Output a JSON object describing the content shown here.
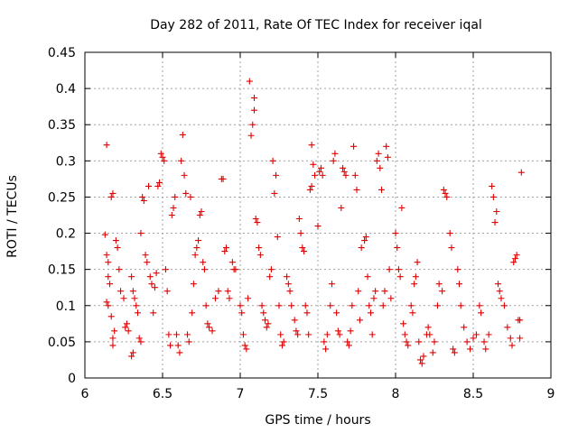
{
  "chart_data": {
    "type": "scatter",
    "title": "Day 282 of 2011, Rate Of TEC Index for receiver iqal",
    "xlabel": "GPS time / hours",
    "ylabel": "ROTI / TECUs",
    "xlim": [
      6,
      9
    ],
    "ylim": [
      0,
      0.45
    ],
    "xticks": [
      "6",
      "6.5",
      "7",
      "7.5",
      "8",
      "8.5",
      "9"
    ],
    "yticks": [
      "0",
      "0.05",
      "0.1",
      "0.15",
      "0.2",
      "0.25",
      "0.3",
      "0.35",
      "0.4",
      "0.45"
    ],
    "grid": true,
    "marker": "+",
    "color": "#e00000",
    "series": [
      {
        "name": "ROTI",
        "points": [
          [
            6.14,
            0.322
          ],
          [
            6.13,
            0.198
          ],
          [
            6.14,
            0.17
          ],
          [
            6.15,
            0.16
          ],
          [
            6.15,
            0.14
          ],
          [
            6.16,
            0.13
          ],
          [
            6.14,
            0.105
          ],
          [
            6.15,
            0.1
          ],
          [
            6.17,
            0.085
          ],
          [
            6.18,
            0.055
          ],
          [
            6.18,
            0.045
          ],
          [
            6.19,
            0.065
          ],
          [
            6.17,
            0.25
          ],
          [
            6.18,
            0.255
          ],
          [
            6.2,
            0.19
          ],
          [
            6.21,
            0.18
          ],
          [
            6.22,
            0.15
          ],
          [
            6.23,
            0.12
          ],
          [
            6.25,
            0.11
          ],
          [
            6.26,
            0.07
          ],
          [
            6.27,
            0.075
          ],
          [
            6.28,
            0.065
          ],
          [
            6.3,
            0.14
          ],
          [
            6.31,
            0.12
          ],
          [
            6.32,
            0.11
          ],
          [
            6.33,
            0.1
          ],
          [
            6.34,
            0.09
          ],
          [
            6.3,
            0.03
          ],
          [
            6.31,
            0.035
          ],
          [
            6.35,
            0.055
          ],
          [
            6.36,
            0.05
          ],
          [
            6.36,
            0.2
          ],
          [
            6.37,
            0.25
          ],
          [
            6.38,
            0.245
          ],
          [
            6.39,
            0.17
          ],
          [
            6.4,
            0.16
          ],
          [
            6.41,
            0.265
          ],
          [
            6.42,
            0.14
          ],
          [
            6.43,
            0.13
          ],
          [
            6.44,
            0.09
          ],
          [
            6.45,
            0.125
          ],
          [
            6.46,
            0.145
          ],
          [
            6.47,
            0.265
          ],
          [
            6.48,
            0.27
          ],
          [
            6.49,
            0.31
          ],
          [
            6.5,
            0.305
          ],
          [
            6.51,
            0.3
          ],
          [
            6.52,
            0.15
          ],
          [
            6.53,
            0.12
          ],
          [
            6.54,
            0.06
          ],
          [
            6.55,
            0.045
          ],
          [
            6.56,
            0.225
          ],
          [
            6.57,
            0.235
          ],
          [
            6.58,
            0.25
          ],
          [
            6.59,
            0.06
          ],
          [
            6.6,
            0.045
          ],
          [
            6.61,
            0.035
          ],
          [
            6.62,
            0.3
          ],
          [
            6.63,
            0.336
          ],
          [
            6.64,
            0.28
          ],
          [
            6.65,
            0.255
          ],
          [
            6.66,
            0.06
          ],
          [
            6.67,
            0.05
          ],
          [
            6.68,
            0.25
          ],
          [
            6.69,
            0.09
          ],
          [
            6.7,
            0.13
          ],
          [
            6.71,
            0.17
          ],
          [
            6.72,
            0.18
          ],
          [
            6.73,
            0.19
          ],
          [
            6.74,
            0.225
          ],
          [
            6.75,
            0.23
          ],
          [
            6.76,
            0.16
          ],
          [
            6.77,
            0.15
          ],
          [
            6.78,
            0.1
          ],
          [
            6.79,
            0.075
          ],
          [
            6.8,
            0.07
          ],
          [
            6.82,
            0.065
          ],
          [
            6.84,
            0.11
          ],
          [
            6.86,
            0.12
          ],
          [
            6.88,
            0.275
          ],
          [
            6.89,
            0.275
          ],
          [
            6.9,
            0.175
          ],
          [
            6.91,
            0.18
          ],
          [
            6.92,
            0.12
          ],
          [
            6.93,
            0.11
          ],
          [
            6.95,
            0.16
          ],
          [
            6.96,
            0.15
          ],
          [
            6.97,
            0.15
          ],
          [
            7.0,
            0.1
          ],
          [
            7.01,
            0.09
          ],
          [
            7.02,
            0.06
          ],
          [
            7.03,
            0.045
          ],
          [
            7.04,
            0.04
          ],
          [
            7.05,
            0.11
          ],
          [
            7.06,
            0.41
          ],
          [
            7.07,
            0.335
          ],
          [
            7.08,
            0.35
          ],
          [
            7.09,
            0.37
          ],
          [
            7.09,
            0.387
          ],
          [
            7.1,
            0.22
          ],
          [
            7.11,
            0.215
          ],
          [
            7.12,
            0.18
          ],
          [
            7.13,
            0.17
          ],
          [
            7.14,
            0.1
          ],
          [
            7.15,
            0.09
          ],
          [
            7.16,
            0.08
          ],
          [
            7.17,
            0.07
          ],
          [
            7.18,
            0.075
          ],
          [
            7.19,
            0.14
          ],
          [
            7.2,
            0.15
          ],
          [
            7.21,
            0.3
          ],
          [
            7.22,
            0.255
          ],
          [
            7.23,
            0.28
          ],
          [
            7.24,
            0.195
          ],
          [
            7.25,
            0.1
          ],
          [
            7.26,
            0.06
          ],
          [
            7.27,
            0.045
          ],
          [
            7.28,
            0.05
          ],
          [
            7.3,
            0.14
          ],
          [
            7.31,
            0.13
          ],
          [
            7.32,
            0.12
          ],
          [
            7.33,
            0.1
          ],
          [
            7.35,
            0.08
          ],
          [
            7.36,
            0.065
          ],
          [
            7.37,
            0.06
          ],
          [
            7.38,
            0.22
          ],
          [
            7.39,
            0.2
          ],
          [
            7.4,
            0.18
          ],
          [
            7.41,
            0.175
          ],
          [
            7.42,
            0.1
          ],
          [
            7.43,
            0.09
          ],
          [
            7.44,
            0.06
          ],
          [
            7.45,
            0.26
          ],
          [
            7.46,
            0.265
          ],
          [
            7.46,
            0.322
          ],
          [
            7.47,
            0.295
          ],
          [
            7.48,
            0.28
          ],
          [
            7.5,
            0.21
          ],
          [
            7.51,
            0.285
          ],
          [
            7.52,
            0.29
          ],
          [
            7.53,
            0.28
          ],
          [
            7.54,
            0.05
          ],
          [
            7.55,
            0.04
          ],
          [
            7.56,
            0.06
          ],
          [
            7.58,
            0.1
          ],
          [
            7.59,
            0.13
          ],
          [
            7.6,
            0.3
          ],
          [
            7.61,
            0.31
          ],
          [
            7.62,
            0.09
          ],
          [
            7.63,
            0.065
          ],
          [
            7.64,
            0.06
          ],
          [
            7.65,
            0.235
          ],
          [
            7.66,
            0.29
          ],
          [
            7.67,
            0.285
          ],
          [
            7.68,
            0.28
          ],
          [
            7.69,
            0.05
          ],
          [
            7.7,
            0.045
          ],
          [
            7.71,
            0.065
          ],
          [
            7.72,
            0.1
          ],
          [
            7.73,
            0.32
          ],
          [
            7.74,
            0.28
          ],
          [
            7.75,
            0.26
          ],
          [
            7.76,
            0.12
          ],
          [
            7.77,
            0.08
          ],
          [
            7.78,
            0.18
          ],
          [
            7.8,
            0.19
          ],
          [
            7.81,
            0.195
          ],
          [
            7.82,
            0.14
          ],
          [
            7.83,
            0.1
          ],
          [
            7.84,
            0.09
          ],
          [
            7.85,
            0.06
          ],
          [
            7.86,
            0.11
          ],
          [
            7.87,
            0.12
          ],
          [
            7.88,
            0.3
          ],
          [
            7.89,
            0.31
          ],
          [
            7.9,
            0.29
          ],
          [
            7.91,
            0.26
          ],
          [
            7.92,
            0.1
          ],
          [
            7.93,
            0.12
          ],
          [
            7.94,
            0.32
          ],
          [
            7.95,
            0.305
          ],
          [
            7.96,
            0.15
          ],
          [
            7.97,
            0.11
          ],
          [
            8.0,
            0.2
          ],
          [
            8.01,
            0.18
          ],
          [
            8.02,
            0.15
          ],
          [
            8.03,
            0.14
          ],
          [
            8.04,
            0.235
          ],
          [
            8.05,
            0.075
          ],
          [
            8.06,
            0.06
          ],
          [
            8.07,
            0.05
          ],
          [
            8.08,
            0.045
          ],
          [
            8.1,
            0.1
          ],
          [
            8.11,
            0.09
          ],
          [
            8.12,
            0.13
          ],
          [
            8.13,
            0.14
          ],
          [
            8.14,
            0.16
          ],
          [
            8.15,
            0.05
          ],
          [
            8.16,
            0.025
          ],
          [
            8.17,
            0.02
          ],
          [
            8.18,
            0.03
          ],
          [
            8.2,
            0.06
          ],
          [
            8.21,
            0.07
          ],
          [
            8.22,
            0.06
          ],
          [
            8.24,
            0.035
          ],
          [
            8.25,
            0.05
          ],
          [
            8.27,
            0.1
          ],
          [
            8.28,
            0.13
          ],
          [
            8.3,
            0.12
          ],
          [
            8.31,
            0.26
          ],
          [
            8.32,
            0.255
          ],
          [
            8.33,
            0.25
          ],
          [
            8.35,
            0.2
          ],
          [
            8.36,
            0.18
          ],
          [
            8.37,
            0.04
          ],
          [
            8.38,
            0.035
          ],
          [
            8.4,
            0.15
          ],
          [
            8.41,
            0.13
          ],
          [
            8.42,
            0.1
          ],
          [
            8.44,
            0.07
          ],
          [
            8.46,
            0.05
          ],
          [
            8.48,
            0.04
          ],
          [
            8.5,
            0.055
          ],
          [
            8.52,
            0.06
          ],
          [
            8.54,
            0.1
          ],
          [
            8.55,
            0.09
          ],
          [
            8.57,
            0.05
          ],
          [
            8.58,
            0.04
          ],
          [
            8.6,
            0.06
          ],
          [
            8.62,
            0.265
          ],
          [
            8.63,
            0.25
          ],
          [
            8.64,
            0.215
          ],
          [
            8.65,
            0.23
          ],
          [
            8.66,
            0.13
          ],
          [
            8.67,
            0.12
          ],
          [
            8.68,
            0.11
          ],
          [
            8.7,
            0.1
          ],
          [
            8.72,
            0.07
          ],
          [
            8.74,
            0.055
          ],
          [
            8.75,
            0.045
          ],
          [
            8.76,
            0.16
          ],
          [
            8.77,
            0.165
          ],
          [
            8.78,
            0.17
          ],
          [
            8.79,
            0.08
          ],
          [
            8.8,
            0.08
          ],
          [
            8.81,
            0.284
          ],
          [
            8.8,
            0.055
          ]
        ]
      }
    ]
  }
}
